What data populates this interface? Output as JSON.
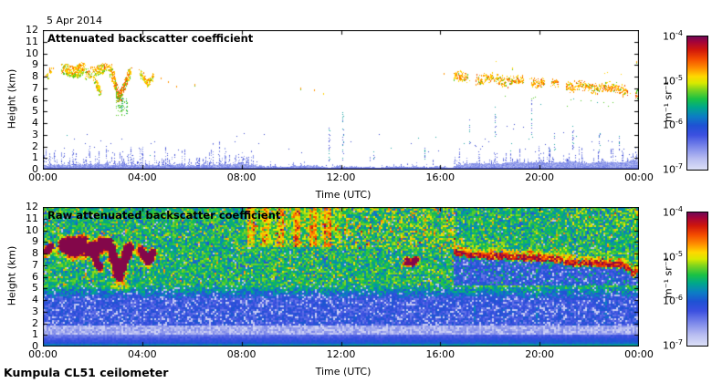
{
  "figure": {
    "date_label": "5 Apr 2014",
    "footer_label": "Kumpula CL51 ceilometer",
    "background_color": "#ffffff"
  },
  "colorbar": {
    "unit": "m⁻¹ sr⁻¹",
    "tick_base": "10",
    "tick_exponents": [
      "-4",
      "-5",
      "-6",
      "-7"
    ],
    "value_range": {
      "min": 1e-07,
      "max": 0.0001,
      "scale": "log10"
    },
    "gradient_stops": [
      [
        0.0,
        "#dcdff7"
      ],
      [
        0.08,
        "#b9bef1"
      ],
      [
        0.17,
        "#7c88ea"
      ],
      [
        0.26,
        "#3c50e0"
      ],
      [
        0.33,
        "#1f51d4"
      ],
      [
        0.4,
        "#0b7ec4"
      ],
      [
        0.47,
        "#00a88a"
      ],
      [
        0.53,
        "#19c145"
      ],
      [
        0.6,
        "#7fd41e"
      ],
      [
        0.65,
        "#d8e900"
      ],
      [
        0.7,
        "#ffd800"
      ],
      [
        0.76,
        "#ff9100"
      ],
      [
        0.83,
        "#f44d00"
      ],
      [
        0.9,
        "#d0170b"
      ],
      [
        0.96,
        "#a3033a"
      ],
      [
        1.0,
        "#6f0a55"
      ]
    ]
  },
  "chart_data": [
    {
      "type": "heatmap",
      "panel": "top",
      "title": "Attenuated backscatter coefficient",
      "xlabel": "Time (UTC)",
      "ylabel": "Height (km)",
      "x_range_hours_utc": [
        0,
        24
      ],
      "y_range_km": [
        0,
        12
      ],
      "x_tick_labels": [
        "00:00",
        "04:00",
        "08:00",
        "12:00",
        "16:00",
        "20:00",
        "00:00"
      ],
      "y_tick_labels": [
        "0",
        "1",
        "2",
        "3",
        "4",
        "5",
        "6",
        "7",
        "8",
        "9",
        "10",
        "11",
        "12"
      ],
      "value_scale": {
        "unit": "m⁻¹ sr⁻¹",
        "log10_min": -7,
        "log10_max": -4
      },
      "features": {
        "boundary_layer": {
          "time_range_utc": [
            0,
            24
          ],
          "solid_top_km": 0.5,
          "spike_top_km_morning": 2.6,
          "spike_top_km_midday": 1.1,
          "spike_top_km_evening": 2.4
        },
        "morning_virga_streaks": [
          {
            "pts": [
              [
                0.1,
                7.9
              ],
              [
                0.35,
                8.9
              ]
            ],
            "tw": 0.18,
            "hw": 0.35,
            "count": 22
          },
          {
            "pts": [
              [
                0.8,
                8.7
              ],
              [
                1.25,
                8.4
              ],
              [
                1.6,
                8.8
              ]
            ],
            "tw": 0.3,
            "hw": 0.95,
            "count": 300
          },
          {
            "pts": [
              [
                1.75,
                8.2
              ],
              [
                2.2,
                8.6
              ],
              [
                2.55,
                8.9
              ]
            ],
            "tw": 0.22,
            "hw": 0.8,
            "count": 170
          },
          {
            "pts": [
              [
                2.05,
                8.0
              ],
              [
                2.3,
                6.7
              ]
            ],
            "tw": 0.12,
            "hw": 0.4,
            "count": 60
          },
          {
            "pts": [
              [
                2.7,
                8.9
              ],
              [
                3.05,
                6.1
              ],
              [
                3.5,
                8.6
              ]
            ],
            "tw": 0.16,
            "hw": 0.6,
            "count": 340,
            "red_core": [
              2.9,
              3.4
            ],
            "green_below_to_km": 4.7
          },
          {
            "pts": [
              [
                3.9,
                8.5
              ],
              [
                4.2,
                7.3
              ],
              [
                4.45,
                8.2
              ]
            ],
            "tw": 0.12,
            "hw": 0.45,
            "count": 110
          }
        ],
        "isolated_specks": [
          [
            4.75,
            7.9
          ],
          [
            5.05,
            7.6
          ],
          [
            5.35,
            7.2
          ],
          [
            6.1,
            7.4
          ],
          [
            10.35,
            7.05
          ],
          [
            10.9,
            6.9
          ],
          [
            11.3,
            6.6
          ],
          [
            16.15,
            8.3
          ],
          [
            18.9,
            8.8
          ],
          [
            23.9,
            9.3
          ]
        ],
        "noise_columns": [
          {
            "t": 11.52,
            "bottom": 0.8,
            "top": 3.6
          },
          {
            "t": 12.05,
            "bottom": 0.9,
            "top": 5.1
          },
          {
            "t": 13.3,
            "bottom": 0.7,
            "top": 1.6
          },
          {
            "t": 15.35,
            "bottom": 0.7,
            "top": 1.9
          },
          {
            "t": 17.15,
            "bottom": 2.2,
            "top": 4.3
          },
          {
            "t": 18.2,
            "bottom": 2.6,
            "top": 5.5
          },
          {
            "t": 19.65,
            "bottom": 2.8,
            "top": 6.0
          },
          {
            "t": 20.6,
            "bottom": 1.6,
            "top": 3.4
          },
          {
            "t": 21.3,
            "bottom": 1.8,
            "top": 4.1
          },
          {
            "t": 22.4,
            "bottom": 1.5,
            "top": 3.2
          },
          {
            "t": 23.2,
            "bottom": 1.4,
            "top": 3.0
          }
        ],
        "evening_cloud_band": {
          "centerline": [
            [
              16.55,
              8.1
            ],
            [
              17.2,
              7.9
            ],
            [
              18.0,
              7.8
            ],
            [
              19.0,
              7.7
            ],
            [
              20.0,
              7.55
            ],
            [
              20.8,
              7.45
            ],
            [
              21.3,
              7.2
            ],
            [
              22.2,
              7.15
            ],
            [
              23.0,
              7.05
            ],
            [
              23.45,
              6.95
            ],
            [
              23.75,
              6.3
            ],
            [
              24,
              6.6
            ]
          ],
          "half_thickness_km": 0.45,
          "segment_hours": 0.28,
          "segment_visibility": 0.84
        }
      }
    },
    {
      "type": "heatmap",
      "panel": "bottom",
      "title": "Raw attenuated backscatter coefficient",
      "xlabel": "Time (UTC)",
      "ylabel": "Height (km)",
      "x_range_hours_utc": [
        0,
        24
      ],
      "y_range_km": [
        0,
        12
      ],
      "x_tick_labels": [
        "00:00",
        "04:00",
        "08:00",
        "12:00",
        "16:00",
        "20:00",
        "00:00"
      ],
      "y_tick_labels": [
        "0",
        "1",
        "2",
        "3",
        "4",
        "5",
        "6",
        "7",
        "8",
        "9",
        "10",
        "11",
        "12"
      ],
      "value_scale": {
        "unit": "m⁻¹ sr⁻¹",
        "log10_min": -7,
        "log10_max": -4
      },
      "features": {
        "noise_zones": {
          "green_speckle_km": [
            5.2,
            12
          ],
          "blue_speckle_km": [
            1.8,
            4.2
          ],
          "pale_speckle_km": [
            0.95,
            1.8
          ],
          "surface_gradient_km": [
            0,
            0.95
          ]
        },
        "morning_virga": {
          "geometry": "same_as_top_panel",
          "appearance": "red-orange cores with yellow-green halo"
        },
        "midday_updraft_plumes": {
          "time_range_utc": [
            8.25,
            12.05
          ],
          "height_range_km": [
            8.6,
            12
          ],
          "columns_utc": [
            8.4,
            8.95,
            9.55,
            10.2,
            10.85,
            11.5
          ]
        },
        "afternoon_patchy_top": {
          "time_range_utc": [
            12.1,
            16.6
          ],
          "height_range_km": [
            8.4,
            12
          ]
        },
        "orange_patch": {
          "t_utc": 14.85,
          "height_km": 7.3
        },
        "evening_cloud_band": {
          "geometry": "same_as_top_panel",
          "core_half_km": 0.25,
          "fringe_above_km": 0.9,
          "fringe_below_km": 0.45,
          "attenuated_blue_below": true
        },
        "below_band_streak_times_utc": [
          17.4,
          18.5,
          19.9,
          21.2,
          22.7
        ]
      }
    }
  ]
}
